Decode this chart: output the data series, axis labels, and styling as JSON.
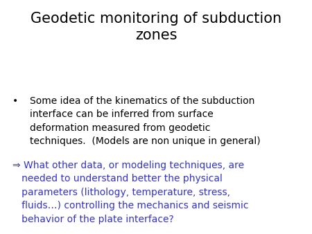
{
  "title_line1": "Geodetic monitoring of subduction",
  "title_line2": "zones",
  "title_color": "#000000",
  "title_fontsize": 15,
  "bullet_text": "Some idea of the kinematics of the subduction\ninterface can be inferred from surface\ndeformation measured from geodetic\ntechniques.  (Models are non unique in general)",
  "bullet_color": "#000000",
  "bullet_fontsize": 10,
  "arrow_text_line1": "⇒ What other data, or modeling techniques, are",
  "arrow_text_line2": "   needed to understand better the physical",
  "arrow_text_line3": "   parameters (lithology, temperature, stress,",
  "arrow_text_line4": "   fluids…) controlling the mechanics and seismic",
  "arrow_text_line5": "   behavior of the plate interface?",
  "arrow_color": "#3333cc",
  "arrow_fontsize": 10,
  "background_color": "#ffffff",
  "fig_width": 4.5,
  "fig_height": 3.38,
  "dpi": 100
}
